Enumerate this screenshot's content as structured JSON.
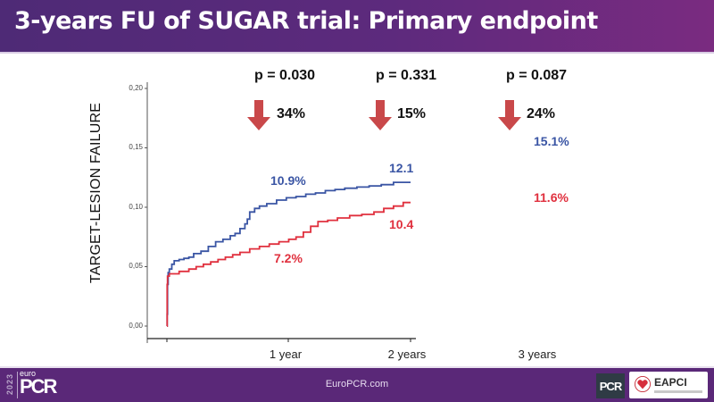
{
  "header": {
    "title": "3-years FU of SUGAR trial: Primary endpoint"
  },
  "footer": {
    "logo": {
      "year": "2023",
      "brand_small": "euro",
      "brand_large": "PCR"
    },
    "url": "EuroPCR.com",
    "partner_logos": [
      "PCR",
      "EAPCI"
    ]
  },
  "colors": {
    "header_bg": "#5d2a7d",
    "footer_bg": "#5a2878",
    "series_blue": "#3a55a4",
    "series_red": "#e0303e",
    "arrow": "#c9484a"
  },
  "comparisons": [
    {
      "p_value": "p = 0.030",
      "reduction": "34%",
      "icon": "down-arrow-icon"
    },
    {
      "p_value": "p = 0.331",
      "reduction": "15%",
      "icon": "down-arrow-icon"
    },
    {
      "p_value": "p = 0.087",
      "reduction": "24%",
      "icon": "down-arrow-icon"
    }
  ],
  "chart_data": {
    "type": "line",
    "subtype": "kaplan-meier-cumulative-incidence",
    "title": "",
    "xlabel": "",
    "ylabel": "TARGET-LESION FAILURE",
    "ylim": [
      0,
      0.2
    ],
    "xlim": [
      0,
      2
    ],
    "y_ticks": [
      "0,00",
      "0,05",
      "0,10",
      "0,15",
      "0,20"
    ],
    "y_tick_values": [
      0,
      0.05,
      0.1,
      0.15,
      0.2
    ],
    "x_tick_labels": [
      "1 year",
      "2 years",
      "3 years"
    ],
    "x_tick_values": [
      1,
      2,
      3
    ],
    "grid": false,
    "series": [
      {
        "name": "blue",
        "color": "#3a55a4",
        "x": [
          0,
          0.002,
          0.005,
          0.01,
          0.02,
          0.04,
          0.06,
          0.1,
          0.14,
          0.18,
          0.22,
          0.28,
          0.34,
          0.4,
          0.46,
          0.52,
          0.56,
          0.6,
          0.64,
          0.66,
          0.68,
          0.72,
          0.76,
          0.82,
          0.9,
          0.98,
          1.06,
          1.14,
          1.22,
          1.3,
          1.38,
          1.46,
          1.56,
          1.66,
          1.76,
          1.86,
          2.0
        ],
        "y": [
          0.0,
          0.01,
          0.035,
          0.045,
          0.048,
          0.052,
          0.055,
          0.056,
          0.057,
          0.058,
          0.061,
          0.063,
          0.067,
          0.071,
          0.073,
          0.076,
          0.078,
          0.082,
          0.086,
          0.09,
          0.096,
          0.099,
          0.101,
          0.103,
          0.106,
          0.108,
          0.109,
          0.111,
          0.112,
          0.114,
          0.115,
          0.116,
          0.117,
          0.118,
          0.119,
          0.121,
          0.121
        ]
      },
      {
        "name": "red",
        "color": "#e0303e",
        "x": [
          0,
          0.002,
          0.005,
          0.02,
          0.1,
          0.18,
          0.24,
          0.3,
          0.36,
          0.42,
          0.48,
          0.54,
          0.6,
          0.68,
          0.76,
          0.84,
          0.92,
          1.0,
          1.06,
          1.12,
          1.18,
          1.24,
          1.32,
          1.4,
          1.5,
          1.6,
          1.7,
          1.78,
          1.86,
          1.94,
          2.0
        ],
        "y": [
          0.0,
          0.035,
          0.042,
          0.044,
          0.046,
          0.048,
          0.05,
          0.052,
          0.054,
          0.056,
          0.058,
          0.06,
          0.062,
          0.065,
          0.067,
          0.069,
          0.071,
          0.073,
          0.075,
          0.079,
          0.084,
          0.088,
          0.089,
          0.091,
          0.093,
          0.094,
          0.096,
          0.099,
          0.101,
          0.104,
          0.104
        ]
      }
    ],
    "annotations": [
      {
        "text": "10.9%",
        "series": "blue",
        "at": "1 year"
      },
      {
        "text": "7.2%",
        "series": "red",
        "at": "1 year"
      },
      {
        "text": "12.1",
        "series": "blue",
        "at": "2 years"
      },
      {
        "text": "10.4",
        "series": "red",
        "at": "2 years"
      },
      {
        "text": "15.1%",
        "series": "blue",
        "at": "3 years"
      },
      {
        "text": "11.6%",
        "series": "red",
        "at": "3 years"
      }
    ]
  }
}
